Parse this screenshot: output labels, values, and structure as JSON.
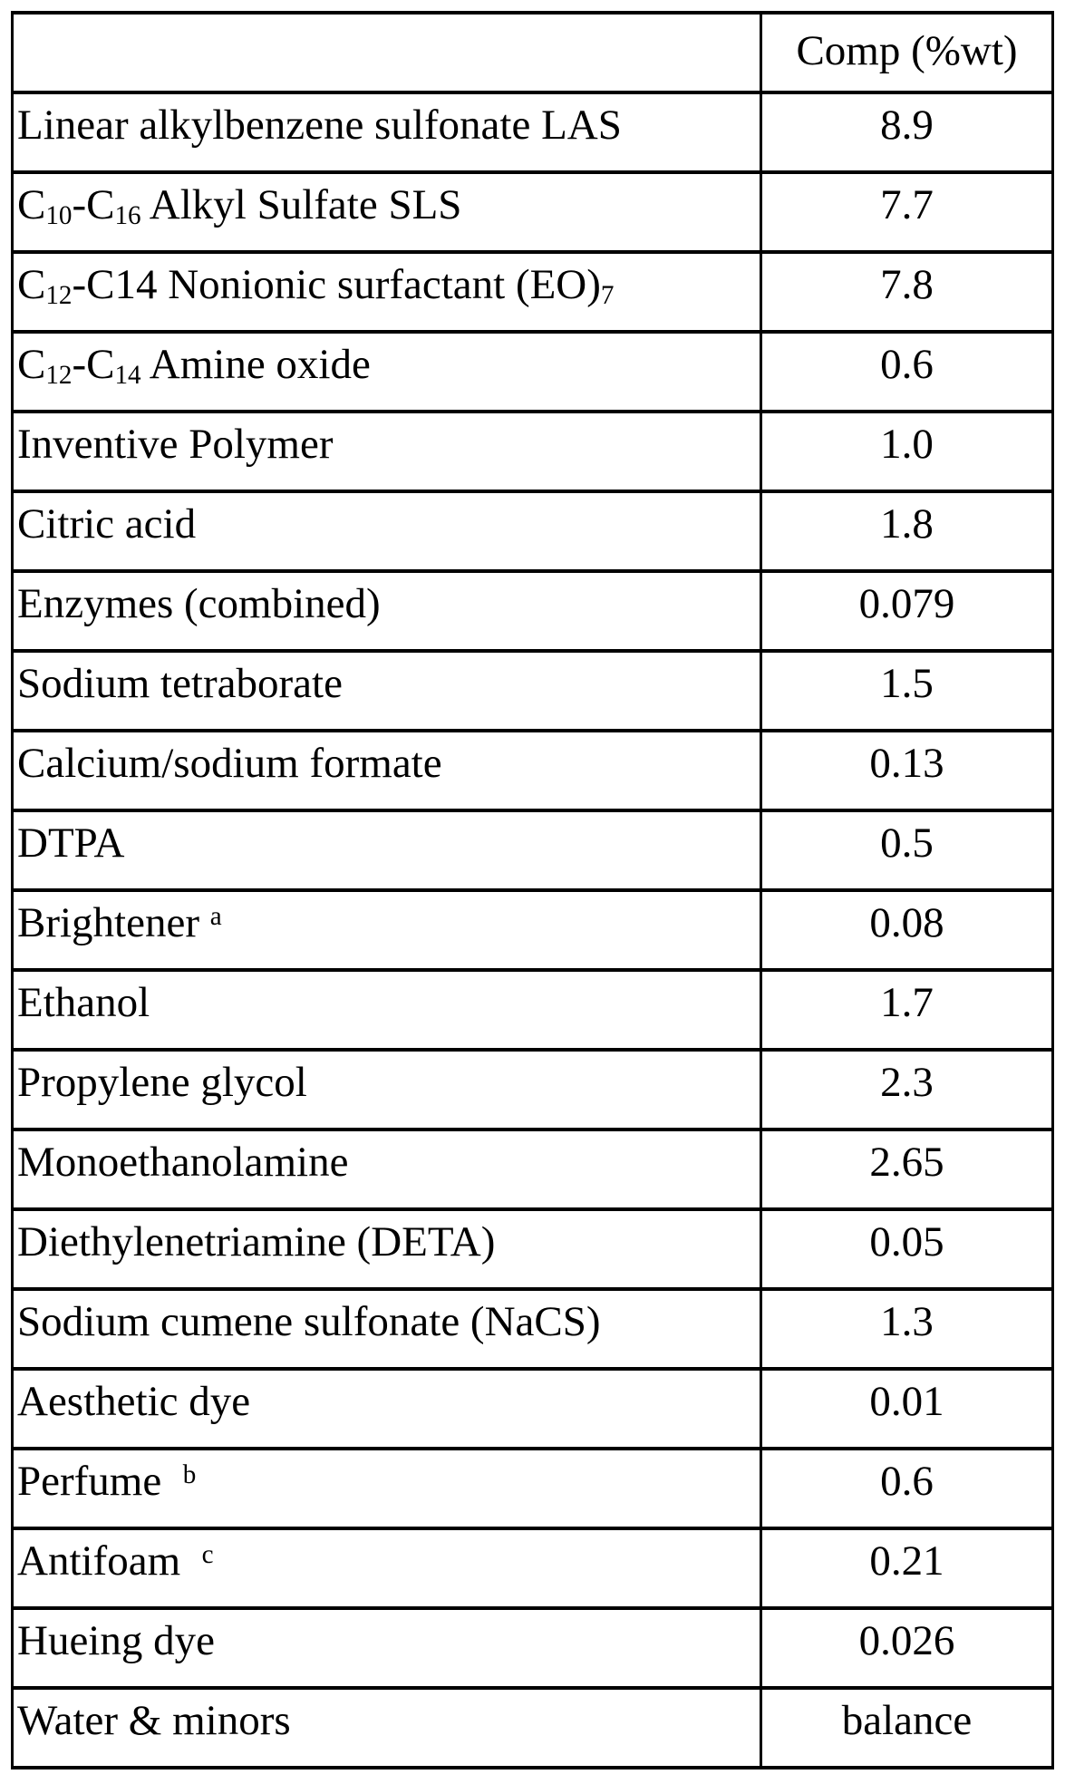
{
  "table": {
    "header": {
      "ingredient_label": "",
      "comp_label": "Comp (%wt)"
    },
    "rows": [
      {
        "ingredient": "Linear alkylbenzene sulfonate LAS",
        "value": "8.9"
      },
      {
        "ingredient": "C~10~-C~16~ Alkyl Sulfate SLS",
        "value": "7.7"
      },
      {
        "ingredient": "C~12~-C14 Nonionic surfactant (EO)~7~",
        "value": "7.8"
      },
      {
        "ingredient": "C~12~-C~14~ Amine oxide",
        "value": "0.6"
      },
      {
        "ingredient": "Inventive Polymer",
        "value": "1.0"
      },
      {
        "ingredient": "Citric acid",
        "value": "1.8"
      },
      {
        "ingredient": "Enzymes (combined)",
        "value": "0.079"
      },
      {
        "ingredient": "Sodium tetraborate",
        "value": "1.5"
      },
      {
        "ingredient": "Calcium/sodium formate",
        "value": "0.13"
      },
      {
        "ingredient": "DTPA",
        "value": "0.5"
      },
      {
        "ingredient": "Brightener ^a^",
        "value": "0.08"
      },
      {
        "ingredient": "Ethanol",
        "value": "1.7"
      },
      {
        "ingredient": "Propylene glycol",
        "value": "2.3"
      },
      {
        "ingredient": "Monoethanolamine",
        "value": "2.65"
      },
      {
        "ingredient": "Diethylenetriamine (DETA)",
        "value": "0.05"
      },
      {
        "ingredient": "Sodium cumene sulfonate (NaCS)",
        "value": "1.3"
      },
      {
        "ingredient": "Aesthetic dye",
        "value": "0.01"
      },
      {
        "ingredient": "Perfume  ^b^",
        "value": "0.6"
      },
      {
        "ingredient": "Antifoam  ^c^",
        "value": "0.21"
      },
      {
        "ingredient": "Hueing dye",
        "value": "0.026"
      },
      {
        "ingredient": "Water & minors",
        "value": "balance"
      }
    ],
    "colors": {
      "border": "#000000",
      "text": "#000000",
      "background": "#ffffff"
    }
  }
}
